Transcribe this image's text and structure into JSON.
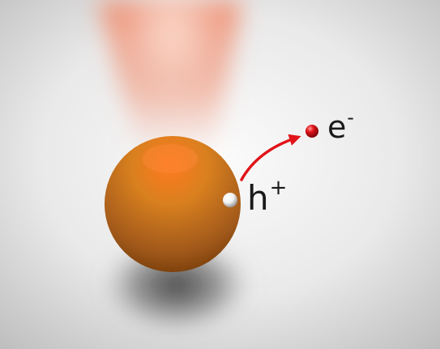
{
  "labels": {
    "electron": {
      "base": "e",
      "superscript": "-"
    },
    "hole": {
      "base": "h",
      "superscript": "+"
    }
  },
  "colors": {
    "background": "#d9d9d9",
    "light_beam": "#f08a6a",
    "particle_core": "#d9801f",
    "particle_edge": "#7a3f0a",
    "electron": "#e0141a",
    "hole": "#f2f2f2",
    "arrow": "#e0141a",
    "shadow": "#3a3a3a"
  }
}
